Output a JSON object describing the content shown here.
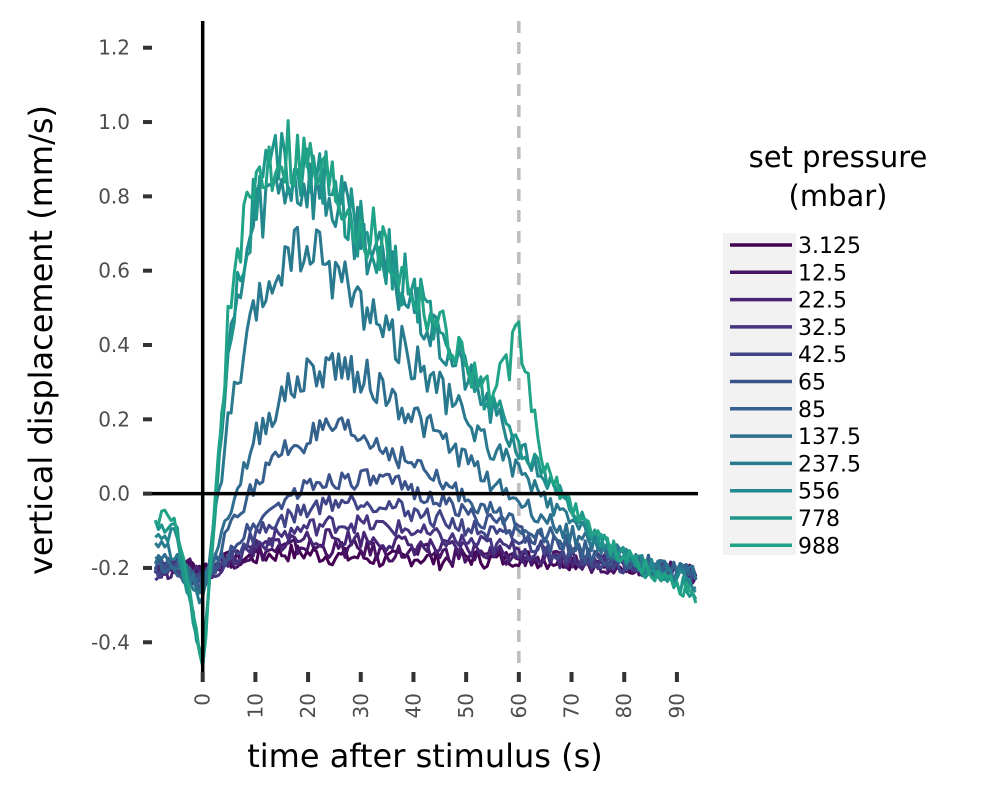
{
  "chart_data": {
    "type": "line",
    "xlabel": "time after stimulus (s)",
    "ylabel": "vertical displacement (mm/s)",
    "xlim": [
      -10,
      94
    ],
    "ylim": [
      -0.48,
      1.28
    ],
    "x_ticks": [
      0,
      10,
      20,
      30,
      40,
      50,
      60,
      70,
      80,
      90
    ],
    "x_tick_labels": [
      "0",
      "10",
      "20",
      "30",
      "40",
      "50",
      "60",
      "70",
      "80",
      "90"
    ],
    "y_ticks": [
      -0.4,
      -0.2,
      0.0,
      0.2,
      0.4,
      0.6,
      0.8,
      1.0,
      1.2
    ],
    "y_tick_labels": [
      "-0.4",
      "-0.2",
      "0.0",
      "0.2",
      "0.4",
      "0.6",
      "0.8",
      "1.0",
      "1.2"
    ],
    "reference_lines": {
      "horizontal_y": 0,
      "vertical_x": 0,
      "dashed_vertical_x": 60
    },
    "grid": false,
    "legend": {
      "title_lines": [
        "set pressure",
        "(mbar)"
      ],
      "position": "right"
    },
    "series": [
      {
        "name": "3.125",
        "color": "#440154",
        "x": [
          -9,
          -5,
          0,
          5,
          10,
          15,
          20,
          25,
          30,
          35,
          40,
          45,
          50,
          55,
          60,
          65,
          70,
          75,
          80,
          85,
          90,
          94
        ],
        "values": [
          -0.2,
          -0.19,
          -0.2,
          -0.18,
          -0.17,
          -0.16,
          -0.16,
          -0.17,
          -0.17,
          -0.18,
          -0.17,
          -0.18,
          -0.17,
          -0.18,
          -0.17,
          -0.18,
          -0.18,
          -0.19,
          -0.19,
          -0.2,
          -0.21,
          -0.22
        ]
      },
      {
        "name": "12.5",
        "color": "#471365",
        "x": [
          -9,
          -5,
          0,
          5,
          10,
          15,
          20,
          25,
          30,
          35,
          40,
          45,
          50,
          55,
          60,
          65,
          70,
          75,
          80,
          85,
          90,
          94
        ],
        "values": [
          -0.19,
          -0.2,
          -0.2,
          -0.18,
          -0.16,
          -0.15,
          -0.14,
          -0.15,
          -0.15,
          -0.16,
          -0.16,
          -0.16,
          -0.17,
          -0.17,
          -0.17,
          -0.18,
          -0.18,
          -0.19,
          -0.19,
          -0.2,
          -0.21,
          -0.22
        ]
      },
      {
        "name": "22.5",
        "color": "#482475",
        "x": [
          -9,
          -5,
          0,
          5,
          10,
          15,
          20,
          25,
          30,
          35,
          40,
          45,
          50,
          55,
          60,
          65,
          70,
          75,
          80,
          85,
          90,
          94
        ],
        "values": [
          -0.2,
          -0.21,
          -0.22,
          -0.18,
          -0.15,
          -0.13,
          -0.12,
          -0.12,
          -0.12,
          -0.13,
          -0.14,
          -0.15,
          -0.15,
          -0.16,
          -0.16,
          -0.17,
          -0.18,
          -0.18,
          -0.19,
          -0.2,
          -0.21,
          -0.22
        ]
      },
      {
        "name": "32.5",
        "color": "#463480",
        "x": [
          -9,
          -5,
          0,
          5,
          10,
          15,
          20,
          25,
          30,
          35,
          40,
          45,
          50,
          55,
          60,
          65,
          70,
          75,
          80,
          85,
          90,
          94
        ],
        "values": [
          -0.21,
          -0.2,
          -0.23,
          -0.18,
          -0.14,
          -0.11,
          -0.09,
          -0.08,
          -0.08,
          -0.09,
          -0.1,
          -0.12,
          -0.13,
          -0.14,
          -0.15,
          -0.16,
          -0.17,
          -0.18,
          -0.19,
          -0.2,
          -0.21,
          -0.22
        ]
      },
      {
        "name": "42.5",
        "color": "#414487",
        "x": [
          -9,
          -5,
          0,
          5,
          10,
          15,
          20,
          25,
          30,
          35,
          40,
          45,
          50,
          55,
          60,
          65,
          70,
          75,
          80,
          85,
          90,
          94
        ],
        "values": [
          -0.2,
          -0.21,
          -0.24,
          -0.17,
          -0.11,
          -0.07,
          -0.04,
          -0.02,
          -0.02,
          -0.03,
          -0.05,
          -0.07,
          -0.09,
          -0.11,
          -0.13,
          -0.15,
          -0.16,
          -0.18,
          -0.19,
          -0.2,
          -0.21,
          -0.22
        ]
      },
      {
        "name": "65",
        "color": "#3b528b",
        "x": [
          -9,
          -5,
          0,
          5,
          10,
          15,
          20,
          25,
          30,
          35,
          40,
          45,
          50,
          55,
          60,
          65,
          70,
          75,
          80,
          85,
          90,
          94
        ],
        "values": [
          -0.19,
          -0.2,
          -0.25,
          -0.15,
          -0.08,
          -0.02,
          0.02,
          0.04,
          0.04,
          0.03,
          0.01,
          -0.02,
          -0.05,
          -0.08,
          -0.1,
          -0.13,
          -0.15,
          -0.17,
          -0.18,
          -0.2,
          -0.21,
          -0.22
        ]
      },
      {
        "name": "85",
        "color": "#355f8d",
        "x": [
          -9,
          -5,
          0,
          5,
          10,
          15,
          20,
          25,
          30,
          35,
          40,
          45,
          50,
          55,
          60,
          65,
          70,
          75,
          80,
          85,
          90,
          94
        ],
        "values": [
          -0.18,
          -0.2,
          -0.25,
          -0.1,
          0.03,
          0.11,
          0.15,
          0.17,
          0.15,
          0.12,
          0.08,
          0.03,
          -0.01,
          -0.05,
          -0.08,
          -0.11,
          -0.14,
          -0.16,
          -0.18,
          -0.19,
          -0.21,
          -0.22
        ]
      },
      {
        "name": "137.5",
        "color": "#2e6e8e",
        "x": [
          -9,
          -5,
          0,
          5,
          10,
          15,
          20,
          25,
          30,
          35,
          40,
          45,
          50,
          55,
          60,
          65,
          70,
          75,
          80,
          85,
          90,
          94
        ],
        "values": [
          -0.17,
          -0.19,
          -0.26,
          -0.05,
          0.15,
          0.26,
          0.32,
          0.35,
          0.32,
          0.27,
          0.21,
          0.15,
          0.09,
          0.03,
          -0.02,
          -0.07,
          -0.11,
          -0.14,
          -0.17,
          -0.19,
          -0.21,
          -0.22
        ]
      },
      {
        "name": "237.5",
        "color": "#297a8e",
        "x": [
          -9,
          -5,
          0,
          5,
          10,
          15,
          20,
          25,
          30,
          35,
          40,
          45,
          50,
          55,
          60,
          65,
          70,
          75,
          80,
          85,
          90,
          94
        ],
        "values": [
          -0.14,
          -0.16,
          -0.3,
          0.2,
          0.48,
          0.62,
          0.66,
          0.6,
          0.52,
          0.44,
          0.36,
          0.28,
          0.2,
          0.12,
          0.06,
          -0.02,
          -0.08,
          -0.13,
          -0.17,
          -0.2,
          -0.22,
          -0.24
        ]
      },
      {
        "name": "556",
        "color": "#23888e",
        "x": [
          -9,
          -5,
          0,
          5,
          10,
          15,
          20,
          25,
          30,
          35,
          40,
          45,
          50,
          55,
          60,
          65,
          70,
          75,
          80,
          85,
          90,
          94
        ],
        "values": [
          -0.1,
          -0.12,
          -0.45,
          0.4,
          0.76,
          0.85,
          0.84,
          0.78,
          0.7,
          0.6,
          0.5,
          0.4,
          0.32,
          0.22,
          0.12,
          0.04,
          -0.05,
          -0.12,
          -0.17,
          -0.2,
          -0.23,
          -0.25
        ]
      },
      {
        "name": "778",
        "color": "#1f968b",
        "x": [
          -9,
          -5,
          0,
          5,
          10,
          15,
          20,
          25,
          30,
          35,
          40,
          45,
          50,
          55,
          60,
          65,
          70,
          75,
          80,
          85,
          90,
          94
        ],
        "values": [
          -0.08,
          -0.1,
          -0.47,
          0.45,
          0.8,
          0.9,
          0.87,
          0.8,
          0.72,
          0.64,
          0.54,
          0.44,
          0.34,
          0.24,
          0.14,
          0.05,
          -0.04,
          -0.12,
          -0.17,
          -0.21,
          -0.24,
          -0.27
        ]
      },
      {
        "name": "988",
        "color": "#20a386",
        "x": [
          -9,
          -5,
          0,
          5,
          10,
          15,
          20,
          25,
          30,
          35,
          40,
          45,
          50,
          55,
          60,
          65,
          70,
          75,
          80,
          85,
          90,
          94
        ],
        "values": [
          -0.06,
          -0.08,
          -0.48,
          0.5,
          0.85,
          0.95,
          0.9,
          0.84,
          0.74,
          0.66,
          0.56,
          0.46,
          0.36,
          0.26,
          0.42,
          0.06,
          -0.03,
          -0.11,
          -0.17,
          -0.21,
          -0.24,
          -0.28
        ]
      }
    ]
  }
}
